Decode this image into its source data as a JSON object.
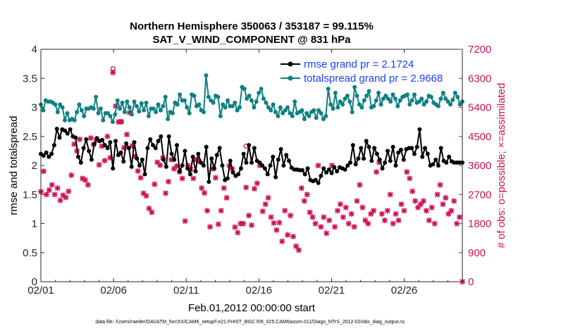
{
  "chart_data": {
    "type": "line",
    "title": "Northern Hemisphere 350063 / 353187 = 99.115%",
    "subtitle": "SAT_V_WIND_COMPONENT @ 831 hPa",
    "xlabel": "Feb.01,2012 00:00:00 start",
    "ylabel": "rmse and totalspread",
    "y2label": "# of obs: o=possible; ×=assimilated",
    "footer": "data file: /Users/raeder/DAI/ATM_forcXX/CAM6_setup/f.e21.FHIST_BGC.f09_025.CAM6assim.011/Diags_NTrS_2012-02/obs_diag_output.nc",
    "x_ticks": [
      "02/01",
      "02/06",
      "02/11",
      "02/16",
      "02/21",
      "02/26"
    ],
    "y_ticks": [
      "0",
      "0.5",
      "1",
      "1.5",
      "2",
      "2.5",
      "3",
      "3.5",
      "4"
    ],
    "y2_ticks": [
      "0",
      "900",
      "1800",
      "2700",
      "3600",
      "4500",
      "5400",
      "6300",
      "7200"
    ],
    "ylim": [
      0,
      4
    ],
    "y2lim": [
      0,
      7200
    ],
    "xlim": [
      0,
      29
    ],
    "colors": {
      "rmse": "#000000",
      "spread": "#0f8080",
      "obs": "#cc1155",
      "legend_text": "#1a3fff"
    },
    "series": [
      {
        "name": "rmse grand pr = 2.1724",
        "color": "#000000",
        "values": [
          2.2,
          2.17,
          2.22,
          2.15,
          2.2,
          2.35,
          2.63,
          2.48,
          2.62,
          2.6,
          2.55,
          2.62,
          2.5,
          2.48,
          2.15,
          2.05,
          2.3,
          2.45,
          2.25,
          2.1,
          2.37,
          2.47,
          2.42,
          2.44,
          2.35,
          2.3,
          2.4,
          1.95,
          2.42,
          2.18,
          2.22,
          2.07,
          2.38,
          2.3,
          1.98,
          2.4,
          2.12,
          2.0,
          2.1,
          1.85,
          2.3,
          2.45,
          2.35,
          2.3,
          2.42,
          2.5,
          2.1,
          1.98,
          2.5,
          2.2,
          2.1,
          2.35,
          1.9,
          2.0,
          2.25,
          1.95,
          1.85,
          2.15,
          1.9,
          2.2,
          2.05,
          2.0,
          2.32,
          1.72,
          2.12,
          1.95,
          2.18,
          2.3,
          2.0,
          1.75,
          1.78,
          2.08,
          1.88,
          1.82,
          1.85,
          1.95,
          2.2,
          2.05,
          2.35,
          2.05,
          2.3,
          2.08,
          2.05,
          2.0,
          1.95,
          1.85,
          2.0,
          2.15,
          1.8,
          2.1,
          2.28,
          2.0,
          2.18,
          2.08,
          1.96,
          1.93,
          1.93,
          1.92,
          1.92,
          1.85,
          1.95,
          1.75,
          1.73,
          1.75,
          1.7,
          1.82,
          1.95,
          1.88,
          1.93,
          1.87,
          1.97,
          1.9,
          1.97,
          1.95,
          1.93,
          2.0,
          2.05,
          2.35,
          2.02,
          2.12,
          2.3,
          2.12,
          2.42,
          2.32,
          2.08,
          2.3,
          2.2,
          2.1,
          1.95,
          2.05,
          2.25,
          2.08,
          2.32,
          2.0,
          2.22,
          2.27,
          2.1,
          2.28,
          2.3,
          2.3,
          2.2,
          2.32,
          2.62,
          2.15,
          2.3,
          2.2,
          2.0,
          2.02,
          2.1,
          2.0,
          2.3,
          2.08,
          2.05,
          2.15,
          2.07,
          2.05,
          2.05,
          2.05,
          2.05
        ]
      },
      {
        "name": "totalspread grand pr = 2.9668",
        "color": "#0f8080",
        "values": [
          3.05,
          2.95,
          3.12,
          3.1,
          3.1,
          3.08,
          3.05,
          2.92,
          3.05,
          3.0,
          2.78,
          2.9,
          2.78,
          2.8,
          2.78,
          2.92,
          3.05,
          2.95,
          2.85,
          2.98,
          2.98,
          3.0,
          2.98,
          3.18,
          2.9,
          2.98,
          2.78,
          2.9,
          2.9,
          2.85,
          2.75,
          2.88,
          3.12,
          2.98,
          3.08,
          2.92,
          3.1,
          3.0,
          2.88,
          3.1,
          3.02,
          2.93,
          3.07,
          2.95,
          3.08,
          2.85,
          2.98,
          2.98,
          2.92,
          3.05,
          2.95,
          3.02,
          3.18,
          2.8,
          2.92,
          2.9,
          3.08,
          3.05,
          3.22,
          3.12,
          3.12,
          3.0,
          2.9,
          3.22,
          3.2,
          3.02,
          3.05,
          2.95,
          2.92,
          3.55,
          3.18,
          3.12,
          3.08,
          3.2,
          3.18,
          2.85,
          3.05,
          3.0,
          3.12,
          3.02,
          3.02,
          3.08,
          2.95,
          3.0,
          3.35,
          3.32,
          3.15,
          3.2,
          3.12,
          3.0,
          3.1,
          3.25,
          3.32,
          3.15,
          3.08,
          3.0,
          2.95,
          3.05,
          2.92,
          2.85,
          3.0,
          2.9,
          2.95,
          3.0,
          2.9,
          2.85,
          3.1,
          2.9,
          2.92,
          2.95,
          2.8,
          2.9,
          2.85,
          2.92,
          2.95,
          2.82,
          2.95,
          2.9,
          2.8,
          2.85,
          3.32,
          3.05,
          2.98,
          3.25,
          3.0,
          3.1,
          3.05,
          3.15,
          3.2,
          3.1,
          2.92,
          3.35,
          3.2,
          3.05,
          3.0,
          3.12,
          3.2,
          3.28,
          3.0,
          3.02,
          3.12,
          3.25,
          3.05,
          3.15,
          3.2,
          3.15,
          3.1,
          3.22,
          3.15,
          3.02,
          3.12,
          3.18,
          3.2,
          3.22,
          3.05,
          3.12,
          3.22,
          3.08,
          3.1,
          3.15,
          3.05,
          3.1,
          3.2,
          3.18,
          3.08,
          3.05,
          3.02,
          3.15,
          3.25,
          3.15,
          3.1,
          3.05,
          3.13,
          3.25,
          3.18,
          3.05,
          3.1
        ]
      }
    ],
    "obs_values": [
      2790,
      3420,
      2700,
      2840,
      3000,
      2700,
      2900,
      2520,
      2680,
      2610,
      2800,
      3300,
      4260,
      4050,
      4410,
      3200,
      3150,
      3000,
      4450,
      4250,
      4380,
      3620,
      4200,
      3750,
      4500,
      3840,
      6480,
      5440,
      4950,
      4960,
      4150,
      4560,
      5240,
      4210,
      3880,
      3430,
      3220,
      2740,
      2660,
      2270,
      2150,
      3020,
      3700,
      3610,
      3840,
      2740,
      3100,
      3780,
      3500,
      3580,
      3400,
      3200,
      1880,
      3600,
      3480,
      3200,
      3780,
      3730,
      2900,
      2750,
      2200,
      1700,
      3500,
      3220,
      1780,
      2200,
      2900,
      2600,
      3600,
      3500,
      1690,
      1520,
      1800,
      1800,
      2920,
      2050,
      1750,
      2880,
      3050,
      3600,
      2180,
      2400,
      2600,
      2000,
      1820,
      1600,
      1830,
      1250,
      2200,
      1450,
      2050,
      1400,
      1100,
      980,
      2900,
      2500,
      2700,
      2150,
      2000,
      1800,
      3600,
      1700,
      2000,
      1500,
      1900,
      3600,
      1700,
      2200,
      2400,
      2000,
      2300,
      1800,
      2100,
      1700,
      2500,
      3000,
      2300,
      1900,
      1800,
      2100,
      2200,
      3400,
      3700,
      2100,
      1900,
      2200,
      2700,
      1800,
      2100,
      1900,
      2400,
      2200,
      3400,
      3200,
      2800,
      2500,
      2300,
      2400,
      2500,
      2200,
      1900,
      2300,
      1800,
      2700,
      3000,
      2400,
      2600,
      2100,
      2200,
      2500,
      1800,
      2000,
      0
    ],
    "obs_possible_values": [
      6600,
      4950,
      4200
    ]
  }
}
